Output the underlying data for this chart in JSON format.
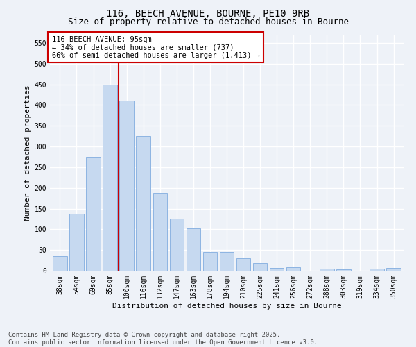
{
  "title1": "116, BEECH AVENUE, BOURNE, PE10 9RB",
  "title2": "Size of property relative to detached houses in Bourne",
  "xlabel": "Distribution of detached houses by size in Bourne",
  "ylabel": "Number of detached properties",
  "categories": [
    "38sqm",
    "54sqm",
    "69sqm",
    "85sqm",
    "100sqm",
    "116sqm",
    "132sqm",
    "147sqm",
    "163sqm",
    "178sqm",
    "194sqm",
    "210sqm",
    "225sqm",
    "241sqm",
    "256sqm",
    "272sqm",
    "288sqm",
    "303sqm",
    "319sqm",
    "334sqm",
    "350sqm"
  ],
  "values": [
    35,
    137,
    275,
    450,
    410,
    325,
    188,
    125,
    102,
    45,
    45,
    30,
    18,
    6,
    8,
    0,
    5,
    4,
    0,
    5,
    6
  ],
  "bar_color": "#c6d9f0",
  "bar_edge_color": "#8db4e2",
  "vline_x_index": 4,
  "vline_color": "#cc0000",
  "annotation_box_text": "116 BEECH AVENUE: 95sqm\n← 34% of detached houses are smaller (737)\n66% of semi-detached houses are larger (1,413) →",
  "annotation_box_color": "#cc0000",
  "ylim": [
    0,
    570
  ],
  "yticks": [
    0,
    50,
    100,
    150,
    200,
    250,
    300,
    350,
    400,
    450,
    500,
    550
  ],
  "bg_color": "#eef2f8",
  "grid_color": "#ffffff",
  "footer": "Contains HM Land Registry data © Crown copyright and database right 2025.\nContains public sector information licensed under the Open Government Licence v3.0.",
  "title_fontsize": 10,
  "subtitle_fontsize": 9,
  "axis_label_fontsize": 8,
  "tick_fontsize": 7,
  "annot_fontsize": 7.5,
  "footer_fontsize": 6.5
}
